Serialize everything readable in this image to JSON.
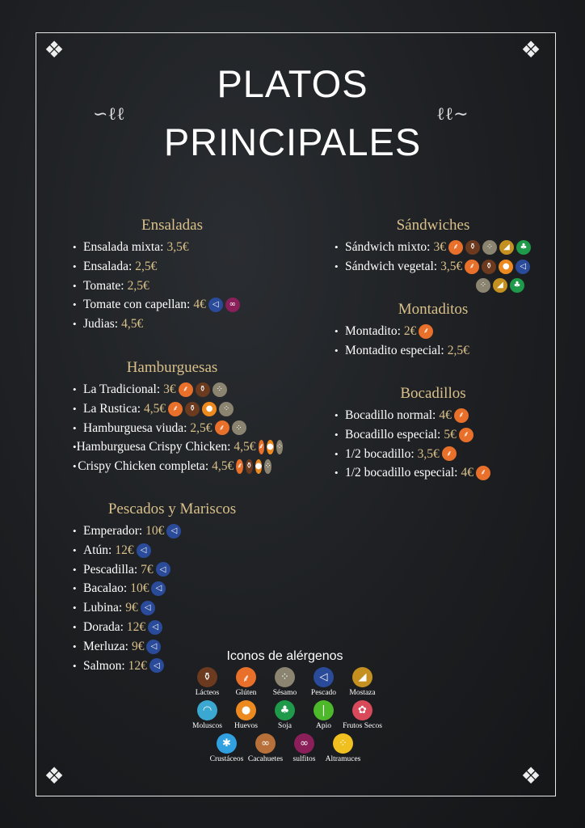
{
  "title": {
    "line1": "PLATOS",
    "line2": "PRINCIPALES"
  },
  "colors": {
    "accent": "#d9c08a",
    "lacteos": "#6b3a1f",
    "gluten": "#e8702a",
    "sesamo": "#8a8470",
    "pescado": "#2a4a9a",
    "mostaza": "#c49020",
    "moluscos": "#3aa8d0",
    "huevos": "#ec8a20",
    "soja": "#1f9a4a",
    "apio": "#4cb82a",
    "frutos_secos": "#d84a5a",
    "crustaceos": "#30a0e0",
    "cacahuetes": "#b8703a",
    "sulfitos": "#8a1f5a",
    "altramuces": "#f0c020"
  },
  "sections": [
    {
      "heading": "Ensaladas",
      "items": [
        {
          "name": "Ensalada mixta:",
          "price": "3,5€",
          "allergens": []
        },
        {
          "name": "Ensalada:",
          "price": "2,5€",
          "allergens": []
        },
        {
          "name": "Tomate:",
          "price": "2,5€",
          "allergens": []
        },
        {
          "name": "Tomate con capellan:",
          "price": "4€",
          "allergens": [
            "pescado",
            "sulfitos"
          ]
        },
        {
          "name": "Judias:",
          "price": "4,5€",
          "allergens": []
        }
      ]
    },
    {
      "heading": "Hamburguesas",
      "items": [
        {
          "name": "La Tradicional:",
          "price": "3€",
          "allergens": [
            "gluten",
            "lacteos",
            "sesamo"
          ]
        },
        {
          "name": "La Rustica:",
          "price": "4,5€",
          "allergens": [
            "gluten",
            "lacteos",
            "huevos",
            "sesamo"
          ]
        },
        {
          "name": "Hamburguesa viuda:",
          "price": "2,5€",
          "allergens": [
            "gluten",
            "sesamo"
          ]
        },
        {
          "name": "Hamburguesa Crispy Chicken:",
          "price": "4,5€",
          "allergens": [
            "gluten",
            "huevos",
            "sesamo"
          ]
        },
        {
          "name": "Crispy Chicken completa:",
          "price": "4,5€",
          "allergens": [
            "gluten",
            "lacteos",
            "huevos",
            "sesamo"
          ]
        }
      ]
    },
    {
      "heading": "Pescados y Mariscos",
      "items": [
        {
          "name": "Emperador:",
          "price": "10€",
          "allergens": [
            "pescado"
          ]
        },
        {
          "name": "Atún:",
          "price": "12€",
          "allergens": [
            "pescado"
          ]
        },
        {
          "name": "Pescadilla:",
          "price": "7€",
          "allergens": [
            "pescado"
          ]
        },
        {
          "name": "Bacalao:",
          "price": "10€",
          "allergens": [
            "pescado"
          ]
        },
        {
          "name": "Lubina:",
          "price": "9€",
          "allergens": [
            "pescado"
          ]
        },
        {
          "name": "Dorada:",
          "price": "12€",
          "allergens": [
            "pescado"
          ]
        },
        {
          "name": "Merluza:",
          "price": "9€",
          "allergens": [
            "pescado"
          ]
        },
        {
          "name": "Salmon:",
          "price": "12€",
          "allergens": [
            "pescado"
          ]
        }
      ]
    },
    {
      "heading": "Sándwiches",
      "items": [
        {
          "name": "Sándwich mixto:",
          "price": "3€",
          "allergens": [
            "gluten",
            "lacteos",
            "sesamo",
            "mostaza",
            "soja"
          ]
        },
        {
          "name": "Sándwich vegetal:",
          "price": "3,5€",
          "allergens": [
            "gluten",
            "lacteos",
            "huevos",
            "pescado"
          ],
          "allergens_wrap": [
            "sesamo",
            "mostaza",
            "soja"
          ]
        }
      ]
    },
    {
      "heading": "Montaditos",
      "items": [
        {
          "name": "Montadito:",
          "price": "2€",
          "allergens": [
            "gluten"
          ]
        },
        {
          "name": "Montadito especial:",
          "price": "2,5€",
          "allergens": []
        }
      ]
    },
    {
      "heading": "Bocadillos",
      "items": [
        {
          "name": "Bocadillo normal:",
          "price": "4€",
          "allergens": [
            "gluten"
          ]
        },
        {
          "name": "Bocadillo especial:",
          "price": "5€",
          "allergens": [
            "gluten"
          ]
        },
        {
          "name": "1/2 bocadillo:",
          "price": "3,5€",
          "allergens": [
            "gluten"
          ]
        },
        {
          "name": "1/2 bocadillo especial:",
          "price": "4€",
          "allergens": [
            "gluten"
          ]
        }
      ]
    }
  ],
  "legend": {
    "title": "Iconos de alérgenos",
    "rows": [
      [
        {
          "key": "lacteos",
          "label": "Lácteos"
        },
        {
          "key": "gluten",
          "label": "Glúten"
        },
        {
          "key": "sesamo",
          "label": "Sésamo"
        },
        {
          "key": "pescado",
          "label": "Pescado"
        },
        {
          "key": "mostaza",
          "label": "Mostaza"
        }
      ],
      [
        {
          "key": "moluscos",
          "label": "Moluscos"
        },
        {
          "key": "huevos",
          "label": "Huevos"
        },
        {
          "key": "soja",
          "label": "Soja"
        },
        {
          "key": "apio",
          "label": "Apio"
        },
        {
          "key": "frutos_secos",
          "label": "Frutos Secos"
        }
      ],
      [
        {
          "key": "crustaceos",
          "label": "Crustáceos"
        },
        {
          "key": "cacahuetes",
          "label": "Cacahuetes"
        },
        {
          "key": "sulfitos",
          "label": "sulfitos"
        },
        {
          "key": "altramuces",
          "label": "Altramuces"
        }
      ]
    ]
  }
}
